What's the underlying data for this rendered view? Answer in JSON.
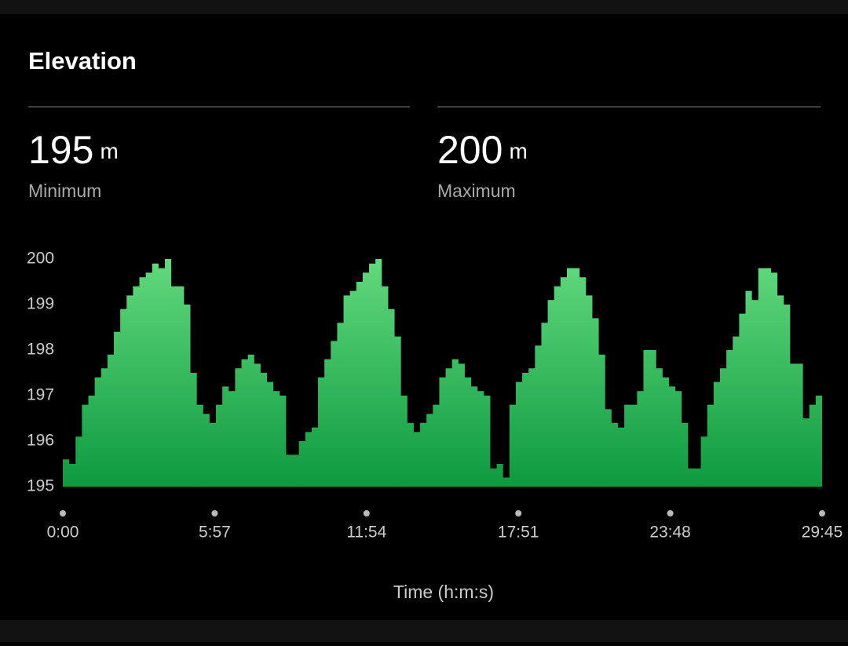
{
  "header": {
    "title": "Elevation"
  },
  "stats": [
    {
      "value": 195,
      "unit": "m",
      "label": "Minimum"
    },
    {
      "value": 200,
      "unit": "m",
      "label": "Maximum"
    }
  ],
  "chart_data": {
    "type": "area",
    "x_label": "Time (h:m:s)",
    "x": [
      0,
      15,
      30,
      45,
      60,
      75,
      90,
      105,
      120,
      135,
      150,
      165,
      180,
      195,
      210,
      225,
      240,
      255,
      270,
      285,
      300,
      315,
      330,
      345,
      360,
      375,
      390,
      405,
      420,
      435,
      450,
      465,
      480,
      495,
      510,
      525,
      540,
      555,
      570,
      585,
      600,
      615,
      630,
      645,
      660,
      675,
      690,
      705,
      720,
      735,
      750,
      765,
      780,
      795,
      810,
      825,
      840,
      855,
      870,
      885,
      900,
      915,
      930,
      945,
      960,
      975,
      990,
      1005,
      1020,
      1035,
      1050,
      1065,
      1080,
      1095,
      1110,
      1125,
      1140,
      1155,
      1170,
      1185,
      1200,
      1215,
      1230,
      1245,
      1260,
      1275,
      1290,
      1305,
      1320,
      1335,
      1350,
      1365,
      1380,
      1395,
      1410,
      1425,
      1440,
      1455,
      1470,
      1485,
      1500,
      1515,
      1530,
      1545,
      1560,
      1575,
      1590,
      1605,
      1620,
      1635,
      1650,
      1665,
      1680,
      1695,
      1710,
      1725,
      1740,
      1755,
      1770,
      1785
    ],
    "values": [
      195.6,
      195.5,
      196.1,
      196.8,
      197.0,
      197.4,
      197.6,
      197.9,
      198.4,
      198.9,
      199.2,
      199.4,
      199.6,
      199.7,
      199.9,
      199.8,
      200.0,
      199.4,
      199.4,
      199.0,
      197.5,
      196.8,
      196.6,
      196.4,
      196.8,
      197.2,
      197.1,
      197.6,
      197.8,
      197.9,
      197.7,
      197.5,
      197.3,
      197.1,
      197.0,
      195.7,
      195.7,
      196.0,
      196.2,
      196.3,
      197.4,
      197.8,
      198.2,
      198.6,
      199.2,
      199.3,
      199.5,
      199.7,
      199.9,
      200.0,
      199.4,
      198.9,
      198.3,
      197.0,
      196.4,
      196.2,
      196.4,
      196.6,
      196.8,
      197.4,
      197.6,
      197.8,
      197.7,
      197.4,
      197.2,
      197.1,
      197.0,
      195.4,
      195.5,
      195.2,
      196.8,
      197.3,
      197.5,
      197.6,
      198.1,
      198.6,
      199.1,
      199.4,
      199.6,
      199.8,
      199.8,
      199.6,
      199.2,
      198.7,
      197.9,
      196.7,
      196.4,
      196.3,
      196.8,
      196.8,
      197.1,
      198.0,
      198.0,
      197.6,
      197.4,
      197.2,
      197.1,
      196.4,
      195.4,
      195.4,
      196.1,
      196.8,
      197.3,
      197.6,
      198.0,
      198.3,
      198.8,
      199.3,
      199.1,
      199.8,
      199.8,
      199.7,
      199.2,
      199.0,
      197.7,
      197.7,
      196.5,
      196.8,
      197.0,
      197.1
    ],
    "colors": [
      "#62d97d",
      "#0e9a3f"
    ],
    "xlim": [
      0,
      1785
    ],
    "xticks": [
      {
        "value": 0,
        "label": "0:00"
      },
      {
        "value": 357,
        "label": "5:57"
      },
      {
        "value": 714,
        "label": "11:54"
      },
      {
        "value": 1071,
        "label": "17:51"
      },
      {
        "value": 1428,
        "label": "23:48"
      },
      {
        "value": 1785,
        "label": "29:45"
      }
    ],
    "ylim": [
      195,
      200
    ],
    "yticks": [
      195,
      196,
      197,
      198,
      199,
      200
    ]
  }
}
